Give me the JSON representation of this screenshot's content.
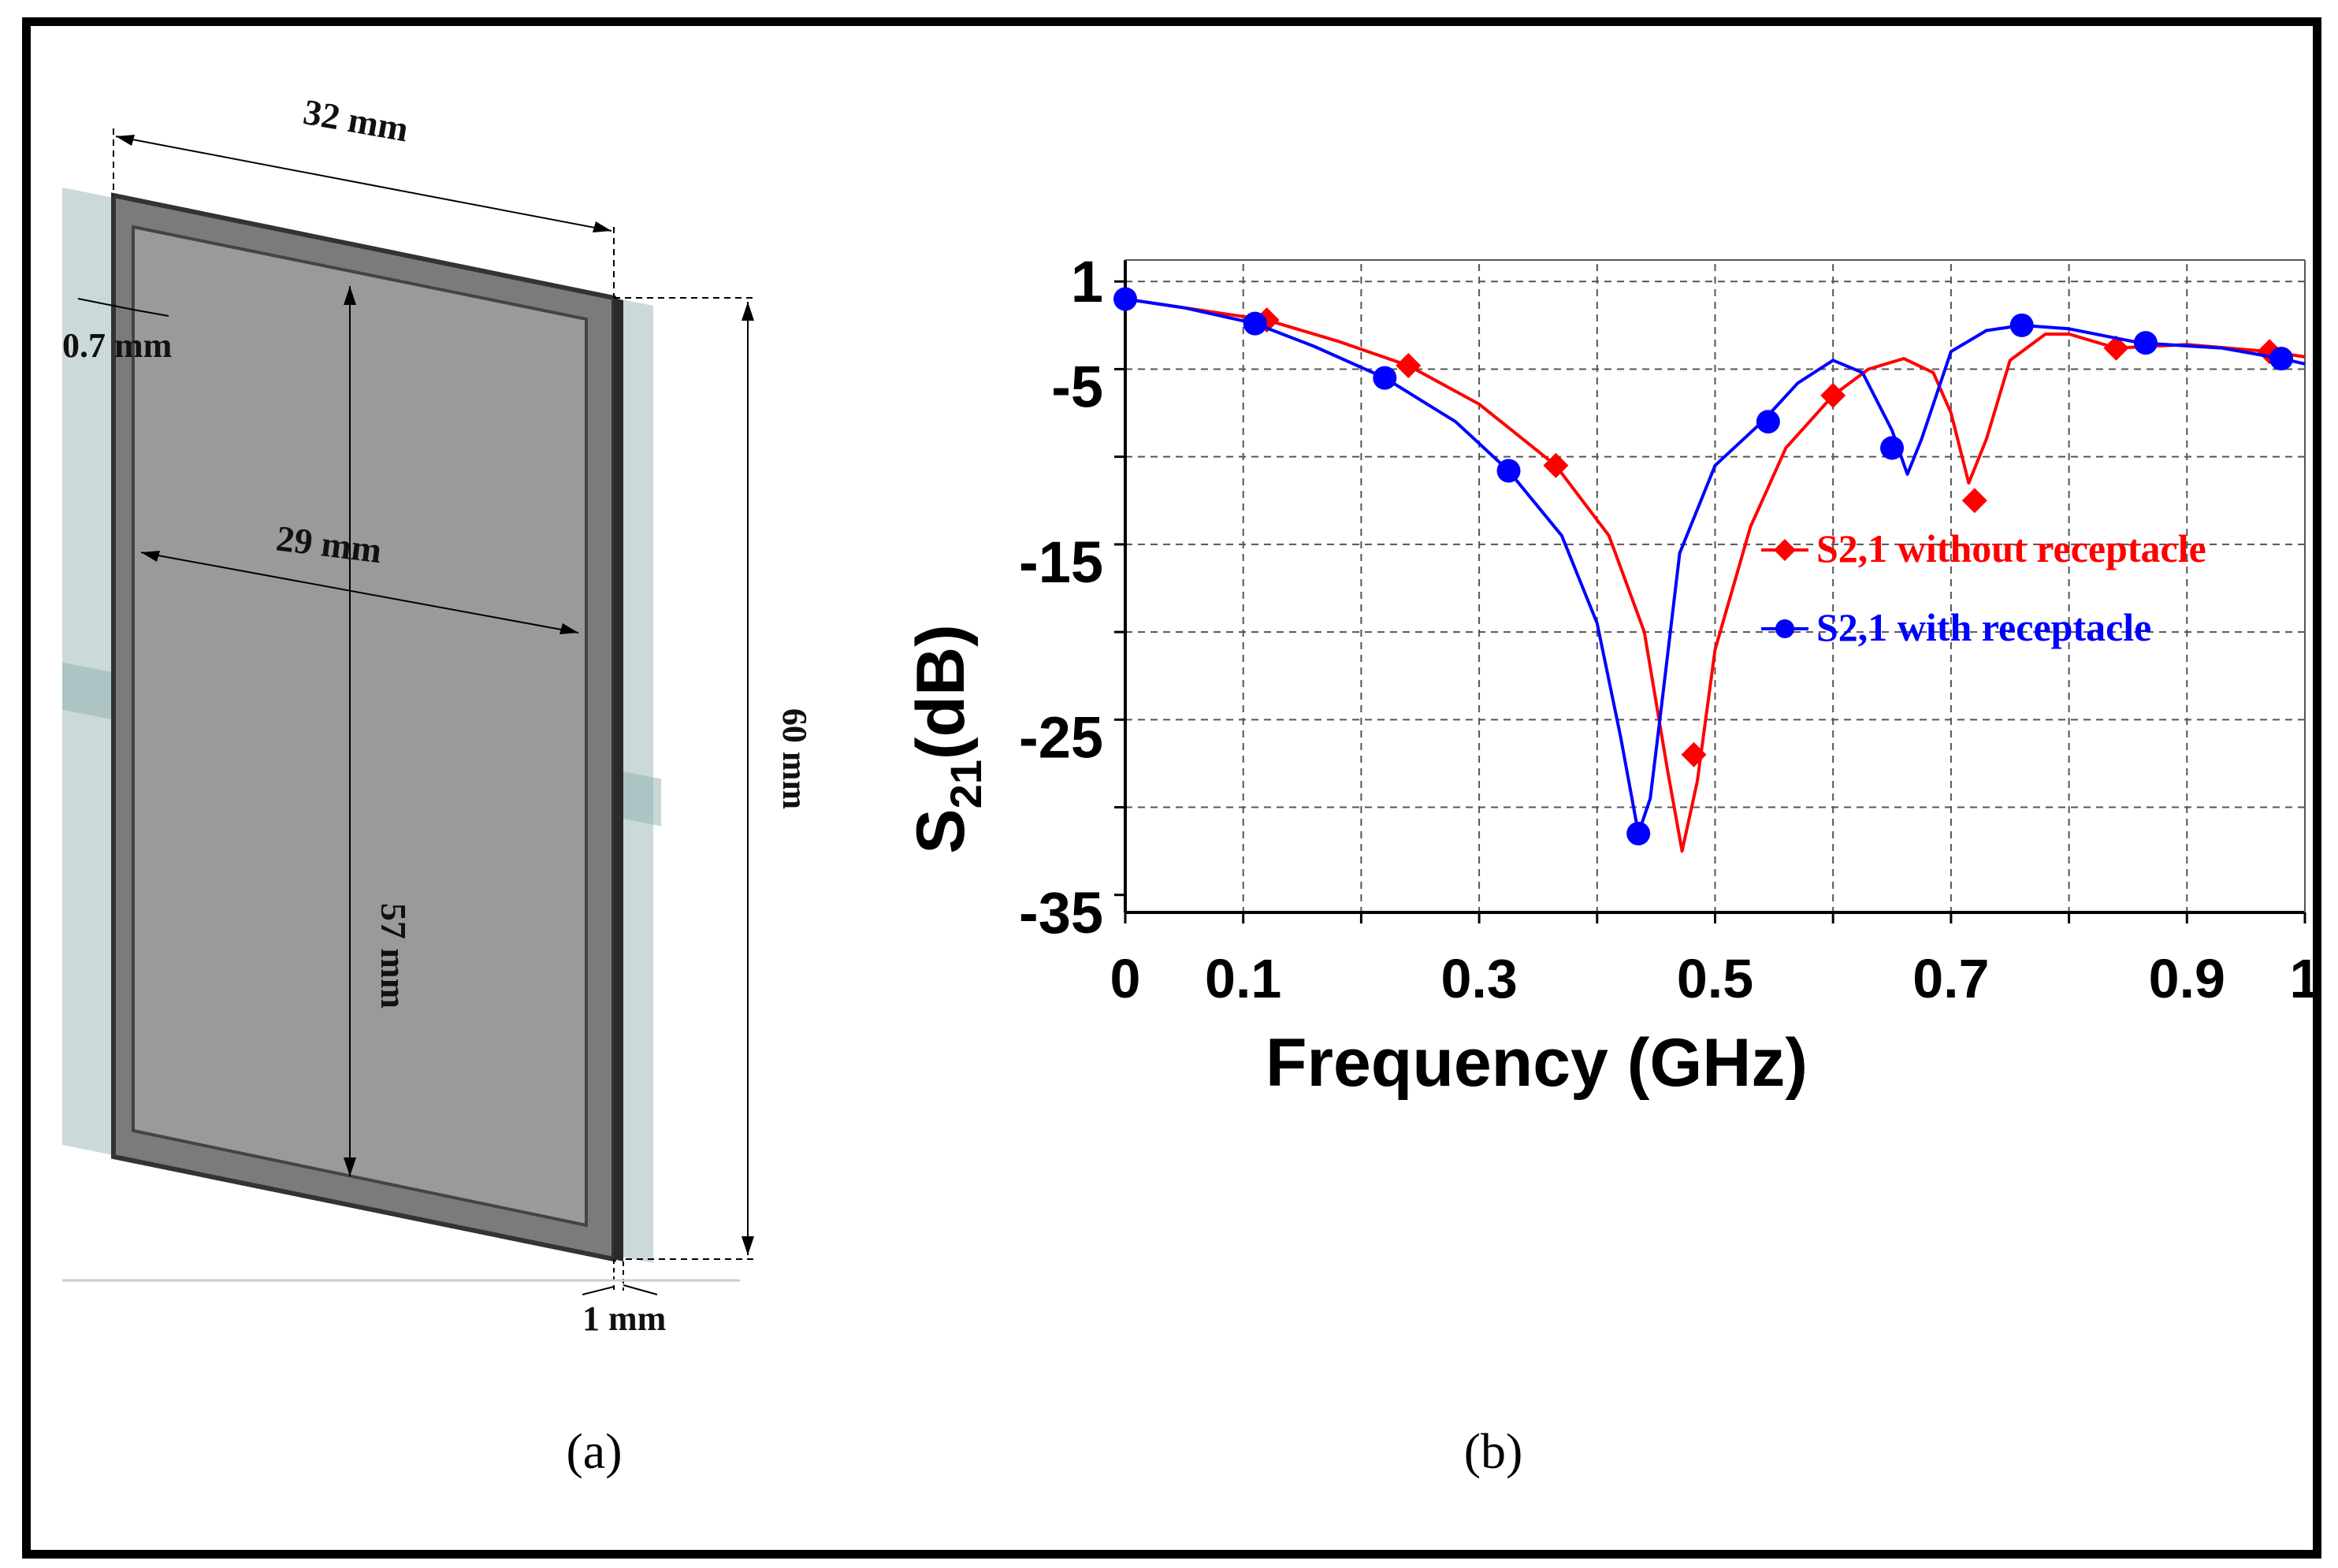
{
  "panel_a": {
    "caption": "(a)",
    "dimensions": {
      "width_outer": "32 mm",
      "gap": "0.7 mm",
      "width_inner": "29 mm",
      "height_inner": "57 mm",
      "height_outer": "60 mm",
      "thickness": "1 mm"
    }
  },
  "panel_b": {
    "caption": "(b)"
  },
  "chart_data": {
    "type": "line",
    "title": "",
    "xlabel": "Frequency (GHz)",
    "ylabel_main": "S",
    "ylabel_sub": "21",
    "ylabel_suffix": "(dB)",
    "xlim": [
      0,
      1
    ],
    "ylim": [
      -35,
      2
    ],
    "x_tick_values": [
      0,
      0.1,
      0.3,
      0.5,
      0.7,
      0.9,
      1
    ],
    "x_tick_labels": [
      "0",
      "0.1",
      "0.3",
      "0.5",
      "0.7",
      "0.9",
      "1"
    ],
    "y_tick_values": [
      1,
      -5,
      -15,
      -25,
      -35
    ],
    "y_tick_labels": [
      "1",
      "-5",
      "-15",
      "-25",
      "-35"
    ],
    "grid": true,
    "legend_position": "right-middle",
    "series": [
      {
        "name": "S2,1 without receptacle",
        "color": "#ff0000",
        "marker": "diamond",
        "x": [
          0,
          0.05,
          0.12,
          0.18,
          0.24,
          0.3,
          0.365,
          0.41,
          0.44,
          0.46,
          0.472,
          0.485,
          0.5,
          0.53,
          0.56,
          0.6,
          0.63,
          0.66,
          0.685,
          0.7,
          0.715,
          0.73,
          0.75,
          0.78,
          0.8,
          0.84,
          0.9,
          0.97,
          1.0
        ],
        "y": [
          0,
          -0.5,
          -1.2,
          -2.4,
          -3.8,
          -6.0,
          -9.5,
          -13.5,
          -19.0,
          -27.0,
          -31.5,
          -27.5,
          -20.0,
          -13.0,
          -8.5,
          -5.5,
          -4.0,
          -3.4,
          -4.2,
          -6.5,
          -10.5,
          -8.0,
          -3.5,
          -2.0,
          -2.0,
          -2.8,
          -2.6,
          -3.0,
          -3.3
        ],
        "marker_points": [
          {
            "x": 0.12,
            "y": -1.2
          },
          {
            "x": 0.24,
            "y": -3.8
          },
          {
            "x": 0.365,
            "y": -9.5
          },
          {
            "x": 0.482,
            "y": -26.0
          },
          {
            "x": 0.6,
            "y": -5.5
          },
          {
            "x": 0.72,
            "y": -11.5
          },
          {
            "x": 0.84,
            "y": -2.8
          },
          {
            "x": 0.97,
            "y": -3.0
          }
        ]
      },
      {
        "name": "S2,1 with receptacle",
        "color": "#0000ff",
        "marker": "circle",
        "x": [
          0,
          0.05,
          0.11,
          0.16,
          0.22,
          0.28,
          0.325,
          0.37,
          0.4,
          0.42,
          0.435,
          0.445,
          0.455,
          0.47,
          0.5,
          0.54,
          0.57,
          0.6,
          0.625,
          0.65,
          0.663,
          0.675,
          0.7,
          0.73,
          0.76,
          0.8,
          0.86,
          0.93,
          0.98,
          1.0
        ],
        "y": [
          0,
          -0.5,
          -1.4,
          -2.7,
          -4.5,
          -7.0,
          -9.8,
          -13.5,
          -18.5,
          -25.0,
          -30.5,
          -28.5,
          -23.0,
          -14.5,
          -9.5,
          -7.0,
          -4.8,
          -3.5,
          -4.2,
          -7.5,
          -10.0,
          -8.0,
          -3.0,
          -1.8,
          -1.5,
          -1.7,
          -2.5,
          -2.8,
          -3.4,
          -3.7
        ],
        "marker_points": [
          {
            "x": 0.0,
            "y": 0.0
          },
          {
            "x": 0.11,
            "y": -1.4
          },
          {
            "x": 0.22,
            "y": -4.5
          },
          {
            "x": 0.325,
            "y": -9.8
          },
          {
            "x": 0.435,
            "y": -30.5
          },
          {
            "x": 0.545,
            "y": -7.0
          },
          {
            "x": 0.65,
            "y": -8.5
          },
          {
            "x": 0.76,
            "y": -1.5
          },
          {
            "x": 0.865,
            "y": -2.5
          },
          {
            "x": 0.98,
            "y": -3.4
          }
        ]
      }
    ]
  }
}
